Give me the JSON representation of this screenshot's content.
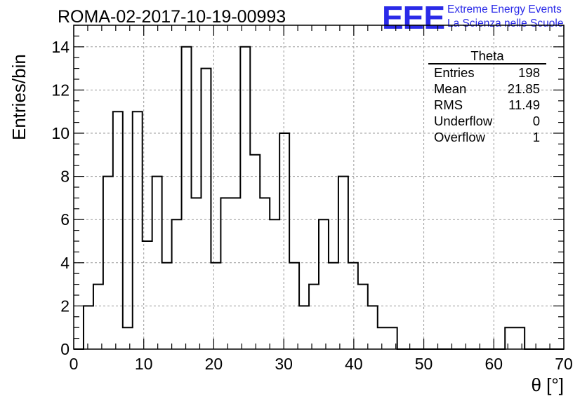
{
  "title": "ROMA-02-2017-10-19-00993",
  "logo": {
    "mark": "EEE",
    "line1": "Extreme Energy Events",
    "line2": "La Scienza nelle Scuole",
    "color": "#2a2ae8"
  },
  "stats": {
    "title": "Theta",
    "rows": [
      {
        "label": "Entries",
        "value": "198"
      },
      {
        "label": "Mean",
        "value": "21.85"
      },
      {
        "label": "RMS",
        "value": "11.49"
      },
      {
        "label": "Underflow",
        "value": "0"
      },
      {
        "label": "Overflow",
        "value": "1"
      }
    ]
  },
  "chart_data": {
    "type": "bar",
    "style": "step histogram",
    "xlabel": "θ [°]",
    "ylabel": "Entries/bin",
    "xlim": [
      0,
      70
    ],
    "ylim": [
      0,
      15
    ],
    "xticks": [
      0,
      10,
      20,
      30,
      40,
      50,
      60,
      70
    ],
    "yticks": [
      0,
      2,
      4,
      6,
      8,
      10,
      12,
      14
    ],
    "grid": true,
    "bin_edges": [
      0.0,
      1.4,
      2.8,
      4.2,
      5.6,
      7.0,
      8.4,
      9.8,
      11.2,
      12.6,
      14.0,
      15.4,
      16.8,
      18.2,
      19.6,
      21.0,
      22.4,
      23.8,
      25.2,
      26.6,
      28.0,
      29.4,
      30.8,
      32.2,
      33.6,
      35.0,
      36.4,
      37.8,
      39.2,
      40.6,
      42.0,
      43.4,
      44.8,
      46.2,
      47.6,
      49.0,
      50.4,
      51.8,
      53.2,
      54.6,
      56.0,
      57.4,
      58.8,
      60.2,
      61.6,
      63.0,
      64.4,
      65.8,
      67.2,
      68.6,
      70.0
    ],
    "values": [
      0,
      2,
      3,
      8,
      11,
      1,
      11,
      5,
      8,
      4,
      6,
      14,
      7,
      13,
      4,
      7,
      7,
      14,
      9,
      7,
      6,
      10,
      4,
      2,
      3,
      6,
      4,
      8,
      4,
      3,
      2,
      1,
      1,
      0,
      0,
      0,
      0,
      0,
      0,
      0,
      0,
      0,
      0,
      0,
      1,
      1,
      0,
      0,
      0,
      0
    ],
    "line_color": "#000000"
  }
}
